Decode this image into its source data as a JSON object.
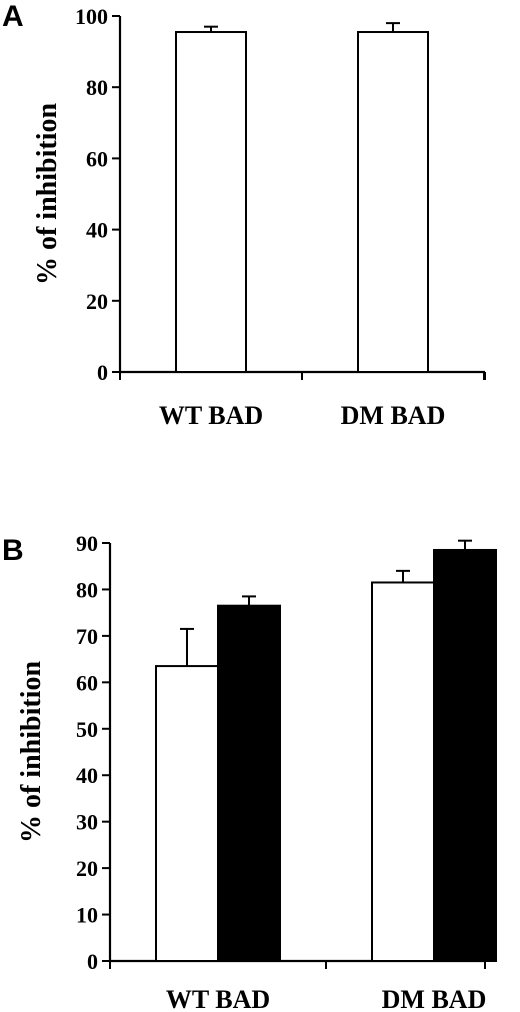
{
  "chart_data": [
    {
      "panel": "A",
      "type": "bar",
      "categories": [
        "WT BAD",
        "DM BAD"
      ],
      "series": [
        {
          "values": [
            95.5,
            95.5
          ],
          "errors": [
            1.5,
            2.5
          ],
          "color": "#ffffff"
        }
      ],
      "ylabel": "% of inhibition",
      "ylim": [
        0,
        100
      ],
      "yticks": [
        0,
        20,
        40,
        60,
        80,
        100
      ],
      "grid": false,
      "legend": "none"
    },
    {
      "panel": "B",
      "type": "bar",
      "categories": [
        "WT BAD",
        "DM BAD"
      ],
      "series": [
        {
          "values": [
            63.5,
            81.5
          ],
          "errors": [
            8,
            2.5
          ],
          "color": "#ffffff"
        },
        {
          "values": [
            76.5,
            88.5
          ],
          "errors": [
            2,
            2
          ],
          "color": "#000000"
        }
      ],
      "ylabel": "% of inhibition",
      "ylim": [
        0,
        90
      ],
      "yticks": [
        0,
        10,
        20,
        30,
        40,
        50,
        60,
        70,
        80,
        90
      ],
      "grid": false,
      "legend": "none"
    }
  ]
}
